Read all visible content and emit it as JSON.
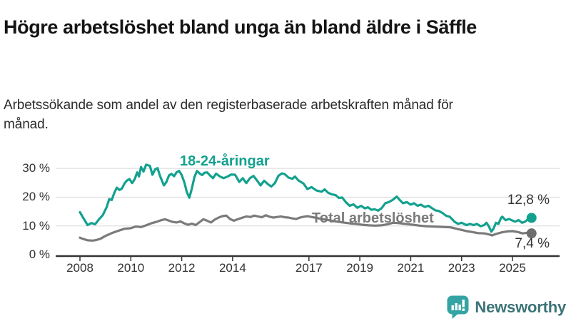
{
  "header": {
    "title": "Högre arbetslöshet bland unga än bland äldre i Säffle",
    "subtitle": "Arbetssökande som andel av den registerbaserade arbetskraften månad för månad."
  },
  "chart_data": {
    "type": "line",
    "unit": "%",
    "grid": true,
    "y_axis": {
      "range": [
        0,
        33
      ],
      "ticks": [
        {
          "value": 0,
          "label": "0 %"
        },
        {
          "value": 10,
          "label": "10 %"
        },
        {
          "value": 20,
          "label": "20 %"
        },
        {
          "value": 30,
          "label": "30 %"
        }
      ]
    },
    "x_axis": {
      "range": [
        2008,
        2025.83
      ],
      "ticks": [
        {
          "year": 2008,
          "label": "2008"
        },
        {
          "year": 2010,
          "label": "2010"
        },
        {
          "year": 2012,
          "label": "2012"
        },
        {
          "year": 2014,
          "label": "2014"
        },
        {
          "year": 2017,
          "label": "2017"
        },
        {
          "year": 2019,
          "label": "2019"
        },
        {
          "year": 2021,
          "label": "2021"
        },
        {
          "year": 2023,
          "label": "2023"
        },
        {
          "year": 2025,
          "label": "2025"
        }
      ]
    },
    "series": [
      {
        "name": "18-24-åringar",
        "color": "#13a18f",
        "dot_color": "#13a18f",
        "end_label": "12,8 %",
        "end_value": 12.8,
        "points": [
          [
            2008.0,
            14.8
          ],
          [
            2008.15,
            12.5
          ],
          [
            2008.3,
            10.3
          ],
          [
            2008.45,
            11.0
          ],
          [
            2008.6,
            10.6
          ],
          [
            2008.75,
            12.3
          ],
          [
            2008.9,
            13.8
          ],
          [
            2009.05,
            16.5
          ],
          [
            2009.15,
            19.3
          ],
          [
            2009.25,
            19.0
          ],
          [
            2009.35,
            21.5
          ],
          [
            2009.45,
            23.3
          ],
          [
            2009.55,
            22.5
          ],
          [
            2009.65,
            23.0
          ],
          [
            2009.75,
            24.8
          ],
          [
            2009.85,
            25.8
          ],
          [
            2009.95,
            26.3
          ],
          [
            2010.05,
            24.9
          ],
          [
            2010.15,
            26.2
          ],
          [
            2010.25,
            28.6
          ],
          [
            2010.32,
            27.2
          ],
          [
            2010.4,
            30.5
          ],
          [
            2010.5,
            28.9
          ],
          [
            2010.6,
            31.3
          ],
          [
            2010.75,
            30.9
          ],
          [
            2010.85,
            27.8
          ],
          [
            2010.95,
            29.6
          ],
          [
            2011.05,
            30.1
          ],
          [
            2011.15,
            27.3
          ],
          [
            2011.3,
            24.1
          ],
          [
            2011.4,
            25.3
          ],
          [
            2011.5,
            27.6
          ],
          [
            2011.6,
            28.1
          ],
          [
            2011.7,
            27.3
          ],
          [
            2011.8,
            28.7
          ],
          [
            2011.9,
            29.1
          ],
          [
            2012.0,
            27.7
          ],
          [
            2012.1,
            25.2
          ],
          [
            2012.2,
            21.8
          ],
          [
            2012.3,
            19.8
          ],
          [
            2012.4,
            23.0
          ],
          [
            2012.5,
            27.0
          ],
          [
            2012.6,
            29.1
          ],
          [
            2012.7,
            28.3
          ],
          [
            2012.8,
            27.7
          ],
          [
            2012.9,
            28.5
          ],
          [
            2013.0,
            28.6
          ],
          [
            2013.12,
            27.5
          ],
          [
            2013.23,
            26.6
          ],
          [
            2013.35,
            28.2
          ],
          [
            2013.5,
            27.2
          ],
          [
            2013.65,
            26.6
          ],
          [
            2013.8,
            27.2
          ],
          [
            2013.95,
            27.9
          ],
          [
            2014.1,
            27.8
          ],
          [
            2014.26,
            25.3
          ],
          [
            2014.4,
            26.6
          ],
          [
            2014.54,
            24.9
          ],
          [
            2014.68,
            26.6
          ],
          [
            2014.82,
            27.4
          ],
          [
            2014.96,
            25.8
          ],
          [
            2015.1,
            24.1
          ],
          [
            2015.24,
            25.7
          ],
          [
            2015.38,
            24.6
          ],
          [
            2015.52,
            23.7
          ],
          [
            2015.66,
            24.9
          ],
          [
            2015.8,
            27.4
          ],
          [
            2015.94,
            28.3
          ],
          [
            2016.05,
            28.0
          ],
          [
            2016.2,
            26.8
          ],
          [
            2016.35,
            26.4
          ],
          [
            2016.45,
            27.2
          ],
          [
            2016.6,
            25.7
          ],
          [
            2016.78,
            24.8
          ],
          [
            2016.94,
            22.8
          ],
          [
            2017.1,
            23.5
          ],
          [
            2017.3,
            22.3
          ],
          [
            2017.5,
            21.9
          ],
          [
            2017.62,
            22.7
          ],
          [
            2017.76,
            21.5
          ],
          [
            2017.9,
            21.0
          ],
          [
            2018.05,
            20.7
          ],
          [
            2018.18,
            19.7
          ],
          [
            2018.3,
            19.9
          ],
          [
            2018.45,
            18.3
          ],
          [
            2018.6,
            17.0
          ],
          [
            2018.75,
            17.5
          ],
          [
            2018.9,
            16.3
          ],
          [
            2019.05,
            17.0
          ],
          [
            2019.2,
            16.1
          ],
          [
            2019.32,
            16.5
          ],
          [
            2019.45,
            15.6
          ],
          [
            2019.58,
            15.8
          ],
          [
            2019.72,
            15.3
          ],
          [
            2019.86,
            16.2
          ],
          [
            2020.0,
            17.9
          ],
          [
            2020.14,
            18.3
          ],
          [
            2020.3,
            19.1
          ],
          [
            2020.45,
            20.2
          ],
          [
            2020.6,
            18.7
          ],
          [
            2020.7,
            17.9
          ],
          [
            2020.85,
            18.3
          ],
          [
            2021.0,
            17.4
          ],
          [
            2021.13,
            17.9
          ],
          [
            2021.27,
            17.0
          ],
          [
            2021.4,
            17.4
          ],
          [
            2021.55,
            16.6
          ],
          [
            2021.7,
            17.0
          ],
          [
            2021.83,
            16.2
          ],
          [
            2021.97,
            15.4
          ],
          [
            2022.1,
            15.2
          ],
          [
            2022.25,
            14.5
          ],
          [
            2022.4,
            13.5
          ],
          [
            2022.53,
            13.2
          ],
          [
            2022.72,
            11.5
          ],
          [
            2022.86,
            10.7
          ],
          [
            2023.0,
            11.1
          ],
          [
            2023.19,
            10.3
          ],
          [
            2023.33,
            10.7
          ],
          [
            2023.47,
            10.3
          ],
          [
            2023.6,
            10.7
          ],
          [
            2023.75,
            9.9
          ],
          [
            2023.89,
            10.3
          ],
          [
            2023.98,
            11.1
          ],
          [
            2024.07,
            9.9
          ],
          [
            2024.17,
            8.0
          ],
          [
            2024.26,
            9.1
          ],
          [
            2024.35,
            11.1
          ],
          [
            2024.45,
            10.7
          ],
          [
            2024.55,
            12.8
          ],
          [
            2024.6,
            13.2
          ],
          [
            2024.73,
            12.0
          ],
          [
            2024.87,
            12.4
          ],
          [
            2024.96,
            12.0
          ],
          [
            2025.1,
            11.5
          ],
          [
            2025.24,
            12.0
          ],
          [
            2025.38,
            11.1
          ],
          [
            2025.5,
            11.5
          ],
          [
            2025.62,
            12.4
          ],
          [
            2025.75,
            12.8
          ]
        ]
      },
      {
        "name": "Total arbetslöshet",
        "color": "#7a7a7a",
        "dot_color": "#6e6e6e",
        "end_label": "7,4 %",
        "end_value": 7.4,
        "points": [
          [
            2008.0,
            5.9
          ],
          [
            2008.15,
            5.4
          ],
          [
            2008.3,
            5.0
          ],
          [
            2008.5,
            4.9
          ],
          [
            2008.65,
            5.1
          ],
          [
            2008.8,
            5.5
          ],
          [
            2009.0,
            6.5
          ],
          [
            2009.25,
            7.5
          ],
          [
            2009.5,
            8.3
          ],
          [
            2009.75,
            9.0
          ],
          [
            2010.0,
            9.2
          ],
          [
            2010.2,
            9.8
          ],
          [
            2010.4,
            9.6
          ],
          [
            2010.6,
            10.2
          ],
          [
            2010.8,
            10.9
          ],
          [
            2011.0,
            11.4
          ],
          [
            2011.2,
            12.0
          ],
          [
            2011.35,
            12.3
          ],
          [
            2011.5,
            11.8
          ],
          [
            2011.65,
            11.4
          ],
          [
            2011.8,
            11.2
          ],
          [
            2011.95,
            11.6
          ],
          [
            2012.1,
            10.9
          ],
          [
            2012.25,
            10.4
          ],
          [
            2012.4,
            10.8
          ],
          [
            2012.55,
            10.3
          ],
          [
            2012.7,
            11.3
          ],
          [
            2012.85,
            12.3
          ],
          [
            2013.0,
            11.8
          ],
          [
            2013.15,
            11.2
          ],
          [
            2013.3,
            12.2
          ],
          [
            2013.45,
            12.9
          ],
          [
            2013.6,
            13.4
          ],
          [
            2013.75,
            13.6
          ],
          [
            2013.9,
            12.4
          ],
          [
            2014.05,
            11.8
          ],
          [
            2014.2,
            12.3
          ],
          [
            2014.4,
            12.9
          ],
          [
            2014.55,
            13.3
          ],
          [
            2014.7,
            13.1
          ],
          [
            2014.85,
            13.6
          ],
          [
            2015.0,
            13.3
          ],
          [
            2015.15,
            13.0
          ],
          [
            2015.3,
            13.7
          ],
          [
            2015.45,
            13.2
          ],
          [
            2015.6,
            12.9
          ],
          [
            2015.75,
            13.1
          ],
          [
            2015.9,
            13.3
          ],
          [
            2016.05,
            13.0
          ],
          [
            2016.2,
            12.9
          ],
          [
            2016.35,
            12.6
          ],
          [
            2016.5,
            12.4
          ],
          [
            2016.65,
            12.9
          ],
          [
            2016.8,
            13.2
          ],
          [
            2016.95,
            13.4
          ],
          [
            2017.1,
            13.1
          ],
          [
            2017.3,
            12.8
          ],
          [
            2017.5,
            12.4
          ],
          [
            2017.7,
            12.1
          ],
          [
            2017.9,
            11.8
          ],
          [
            2018.1,
            11.5
          ],
          [
            2018.35,
            11.2
          ],
          [
            2018.6,
            10.9
          ],
          [
            2018.85,
            10.7
          ],
          [
            2019.1,
            10.4
          ],
          [
            2019.35,
            10.2
          ],
          [
            2019.6,
            10.1
          ],
          [
            2019.85,
            10.2
          ],
          [
            2020.1,
            10.6
          ],
          [
            2020.3,
            11.1
          ],
          [
            2020.5,
            11.0
          ],
          [
            2020.7,
            10.8
          ],
          [
            2020.9,
            10.6
          ],
          [
            2021.1,
            10.4
          ],
          [
            2021.35,
            10.1
          ],
          [
            2021.6,
            9.9
          ],
          [
            2021.85,
            9.8
          ],
          [
            2022.1,
            9.7
          ],
          [
            2022.35,
            9.6
          ],
          [
            2022.57,
            9.5
          ],
          [
            2022.76,
            9.1
          ],
          [
            2023.0,
            8.6
          ],
          [
            2023.2,
            8.2
          ],
          [
            2023.4,
            7.9
          ],
          [
            2023.65,
            7.5
          ],
          [
            2023.9,
            7.4
          ],
          [
            2024.1,
            7.0
          ],
          [
            2024.2,
            6.7
          ],
          [
            2024.35,
            7.2
          ],
          [
            2024.6,
            7.8
          ],
          [
            2024.8,
            8.1
          ],
          [
            2025.0,
            8.2
          ],
          [
            2025.2,
            7.9
          ],
          [
            2025.4,
            7.4
          ],
          [
            2025.55,
            7.6
          ],
          [
            2025.75,
            7.4
          ]
        ]
      }
    ]
  },
  "style": {
    "axis_color": "#333333",
    "grid_color": "#d8d8d8",
    "tick_label_color": "#333333"
  },
  "footer": {
    "brand": "Newsworthy",
    "brand_text_color": "#3c7377",
    "brand_icon": "newsworthy-speech-bubble-chart-icon",
    "brand_icon_color": "#33a3a3"
  }
}
